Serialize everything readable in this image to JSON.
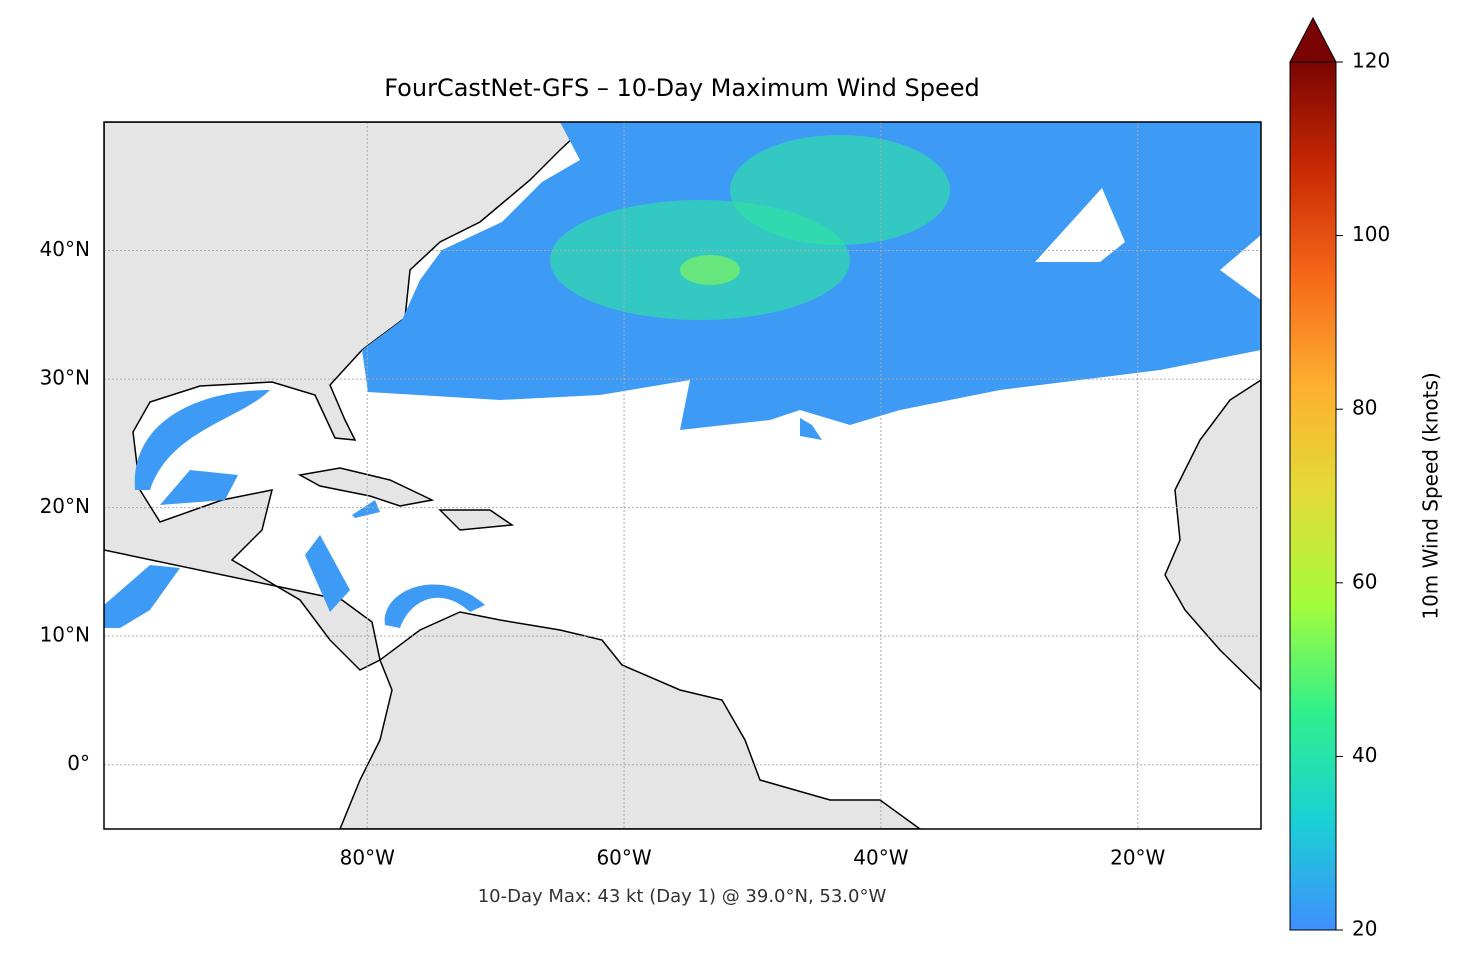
{
  "chart_data": {
    "type": "map",
    "title": "FourCastNet-GFS – 10-Day Maximum Wind Speed",
    "annotation": "10-Day Max: 43 kt (Day 1) @ 39.0°N, 53.0°W",
    "xlim": [
      -100.5,
      -10.4
    ],
    "ylim": [
      -5,
      50
    ],
    "xticks": [
      {
        "value": -80,
        "label": "80°W"
      },
      {
        "value": -60,
        "label": "60°W"
      },
      {
        "value": -40,
        "label": "40°W"
      },
      {
        "value": -20,
        "label": "20°W"
      }
    ],
    "yticks": [
      {
        "value": 0,
        "label": "0°"
      },
      {
        "value": 10,
        "label": "10°N"
      },
      {
        "value": 20,
        "label": "20°N"
      },
      {
        "value": 30,
        "label": "30°N"
      },
      {
        "value": 40,
        "label": "40°N"
      }
    ],
    "grid": true,
    "colorbar": {
      "label": "10m Wind Speed (knots)",
      "lim": [
        20,
        120
      ],
      "ticks": [
        20,
        40,
        60,
        80,
        100,
        120
      ],
      "colormap": [
        "#3f8ffd",
        "#1bd0d5",
        "#2ef08c",
        "#a4fc3c",
        "#e2dc38",
        "#feb030",
        "#f66a1a",
        "#ca2a04",
        "#7a0403"
      ]
    }
  }
}
